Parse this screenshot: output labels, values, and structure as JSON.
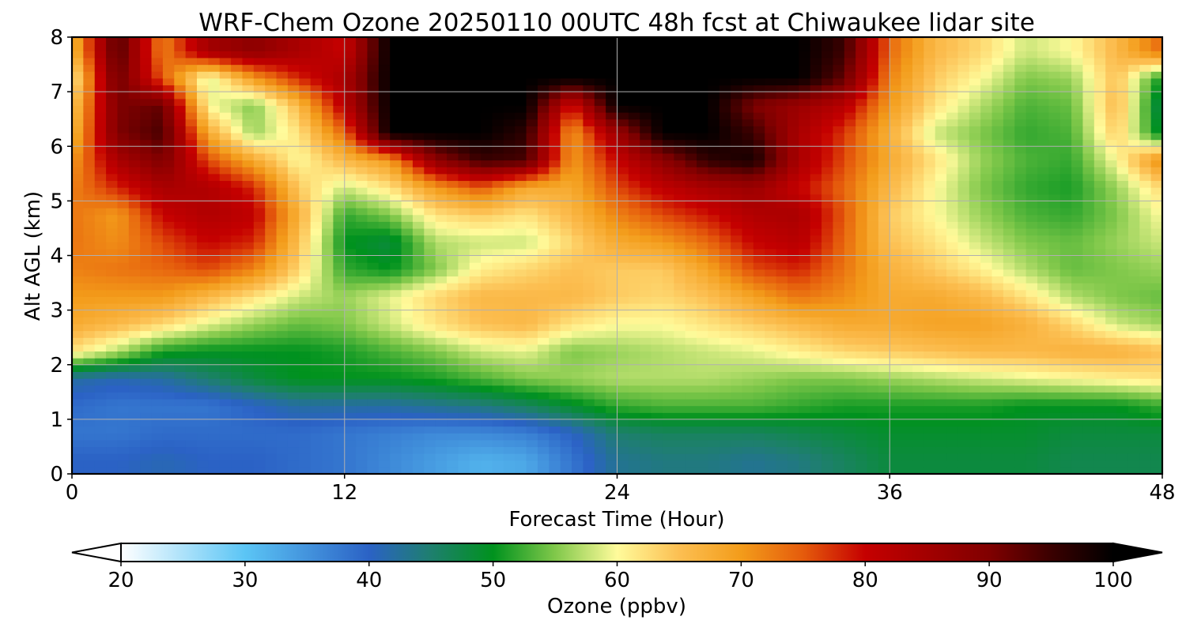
{
  "chart_data": {
    "type": "heatmap",
    "title": "WRF-Chem Ozone  20250110 00UTC 48h fcst at Chiwaukee lidar site",
    "xlabel": "Forecast Time (Hour)",
    "ylabel": "Alt AGL (km)",
    "xlim": [
      0,
      48
    ],
    "ylim": [
      0,
      8
    ],
    "x_ticks": [
      "0",
      "12",
      "24",
      "36",
      "48"
    ],
    "y_ticks": [
      "0",
      "1",
      "2",
      "3",
      "4",
      "5",
      "6",
      "7",
      "8"
    ],
    "grid": true,
    "x": [
      0,
      2,
      4,
      6,
      8,
      10,
      12,
      14,
      16,
      18,
      20,
      22,
      24,
      26,
      28,
      30,
      32,
      34,
      36,
      38,
      40,
      42,
      44,
      46,
      48
    ],
    "y": [
      0.25,
      0.75,
      1.25,
      1.75,
      2.25,
      2.75,
      3.25,
      3.75,
      4.25,
      4.75,
      5.25,
      5.75,
      6.25,
      6.75,
      7.25,
      7.75
    ],
    "z": [
      [
        40,
        40,
        41,
        40,
        40,
        39,
        38,
        36,
        34,
        32,
        33,
        38,
        43,
        44,
        44,
        43,
        44,
        46,
        48,
        48,
        48,
        48,
        47,
        47,
        47
      ],
      [
        38,
        38,
        39,
        39,
        39,
        39,
        38,
        37,
        36,
        36,
        37,
        40,
        45,
        46,
        46,
        46,
        47,
        48,
        49,
        49,
        49,
        49,
        48,
        48,
        48
      ],
      [
        39,
        38,
        38,
        38,
        40,
        42,
        42,
        42,
        43,
        44,
        46,
        49,
        52,
        53,
        53,
        53,
        52,
        51,
        51,
        51,
        51,
        50,
        50,
        50,
        52
      ],
      [
        42,
        41,
        42,
        45,
        48,
        50,
        50,
        50,
        51,
        53,
        55,
        56,
        57,
        57,
        57,
        56,
        55,
        55,
        56,
        57,
        58,
        59,
        60,
        61,
        62
      ],
      [
        62,
        57,
        51,
        50,
        50,
        50,
        51,
        53,
        55,
        58,
        59,
        55,
        56,
        57,
        58,
        59,
        61,
        63,
        64,
        65,
        66,
        66,
        67,
        67,
        65
      ],
      [
        68,
        66,
        63,
        59,
        56,
        54,
        55,
        58,
        62,
        65,
        66,
        62,
        60,
        60,
        62,
        64,
        66,
        68,
        68,
        69,
        69,
        67,
        63,
        58,
        56
      ],
      [
        70,
        70,
        70,
        66,
        62,
        58,
        56,
        59,
        63,
        66,
        66,
        66,
        64,
        63,
        65,
        69,
        73,
        71,
        68,
        68,
        66,
        62,
        57,
        55,
        54
      ],
      [
        72,
        73,
        74,
        76,
        72,
        63,
        52,
        50,
        55,
        61,
        63,
        65,
        64,
        64,
        69,
        76,
        78,
        73,
        67,
        64,
        61,
        57,
        54,
        55,
        56
      ],
      [
        73,
        71,
        76,
        80,
        78,
        65,
        50,
        48,
        57,
        58,
        58,
        63,
        68,
        70,
        74,
        80,
        82,
        74,
        65,
        62,
        58,
        55,
        54,
        56,
        58
      ],
      [
        73,
        70,
        80,
        83,
        81,
        67,
        52,
        55,
        62,
        64,
        62,
        66,
        72,
        76,
        79,
        83,
        84,
        75,
        64,
        60,
        56,
        53,
        52,
        55,
        60
      ],
      [
        72,
        78,
        84,
        83,
        78,
        64,
        58,
        62,
        70,
        75,
        68,
        68,
        76,
        81,
        84,
        86,
        80,
        74,
        66,
        60,
        55,
        52,
        51,
        56,
        63
      ],
      [
        70,
        84,
        90,
        76,
        68,
        60,
        66,
        70,
        88,
        95,
        94,
        70,
        80,
        88,
        96,
        98,
        84,
        76,
        68,
        62,
        56,
        53,
        52,
        60,
        72
      ],
      [
        66,
        90,
        94,
        68,
        56,
        62,
        74,
        100,
        100,
        100,
        96,
        70,
        86,
        100,
        100,
        95,
        84,
        77,
        67,
        58,
        55,
        52,
        53,
        64,
        48
      ],
      [
        64,
        90,
        92,
        60,
        55,
        66,
        82,
        100,
        100,
        100,
        100,
        78,
        100,
        100,
        100,
        90,
        86,
        82,
        70,
        62,
        57,
        53,
        54,
        66,
        46
      ],
      [
        60,
        92,
        75,
        58,
        70,
        78,
        84,
        100,
        100,
        100,
        100,
        100,
        100,
        100,
        100,
        100,
        100,
        92,
        72,
        64,
        60,
        55,
        56,
        65,
        50
      ],
      [
        66,
        94,
        72,
        85,
        88,
        84,
        80,
        100,
        100,
        100,
        100,
        100,
        100,
        100,
        100,
        100,
        100,
        95,
        74,
        66,
        63,
        58,
        60,
        66,
        74
      ]
    ],
    "colorbar": {
      "label": "Ozone  (ppbv)",
      "min": 20,
      "max": 100,
      "ticks": [
        "20",
        "30",
        "40",
        "50",
        "60",
        "70",
        "80",
        "90",
        "100"
      ],
      "extend": "both",
      "stops": [
        {
          "v": 20,
          "c": "#ffffff"
        },
        {
          "v": 30,
          "c": "#5bc5f5"
        },
        {
          "v": 40,
          "c": "#2b62c5"
        },
        {
          "v": 45,
          "c": "#1e7f6e"
        },
        {
          "v": 50,
          "c": "#00921e"
        },
        {
          "v": 55,
          "c": "#80c84a"
        },
        {
          "v": 60,
          "c": "#fffb9b"
        },
        {
          "v": 65,
          "c": "#fcbf52"
        },
        {
          "v": 70,
          "c": "#f39c1a"
        },
        {
          "v": 75,
          "c": "#e55b0c"
        },
        {
          "v": 80,
          "c": "#c50000"
        },
        {
          "v": 90,
          "c": "#800000"
        },
        {
          "v": 95,
          "c": "#3a0000"
        },
        {
          "v": 100,
          "c": "#000000"
        }
      ]
    }
  }
}
